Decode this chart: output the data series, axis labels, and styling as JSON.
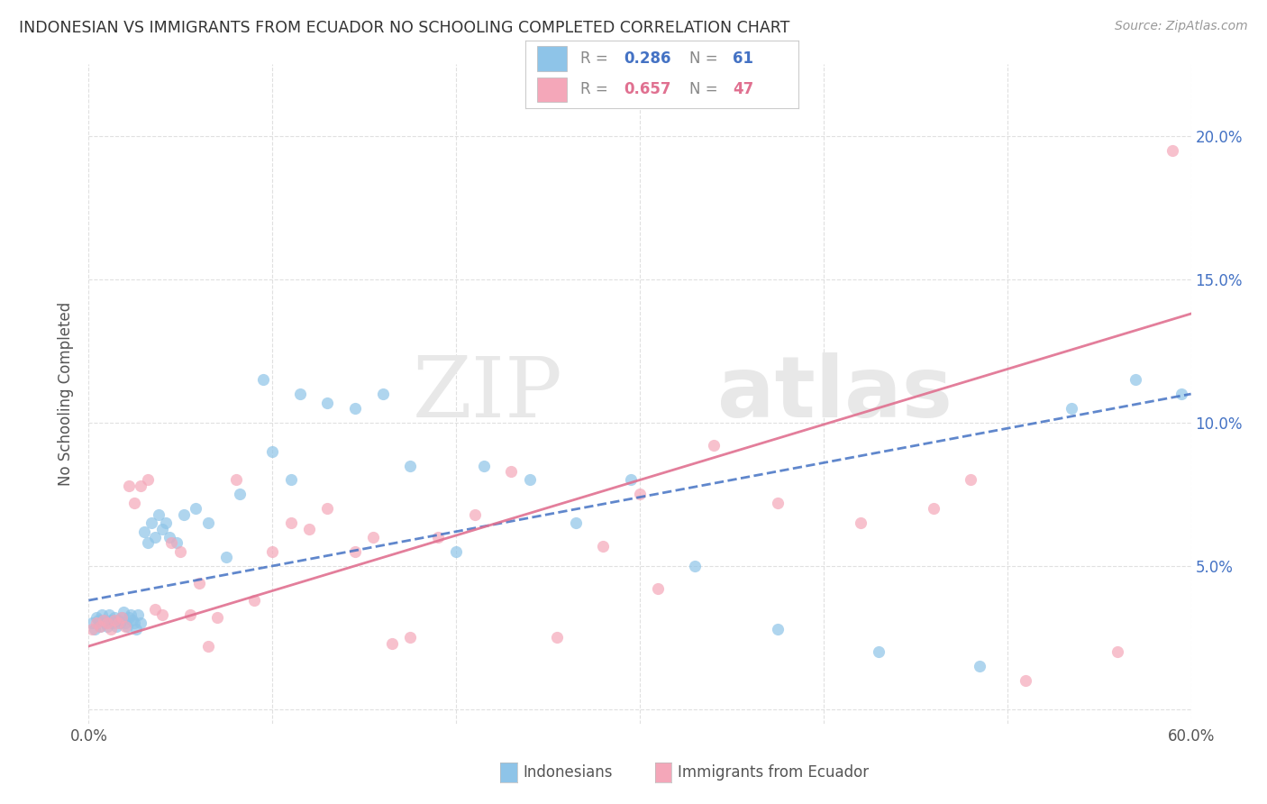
{
  "title": "INDONESIAN VS IMMIGRANTS FROM ECUADOR NO SCHOOLING COMPLETED CORRELATION CHART",
  "source": "Source: ZipAtlas.com",
  "ylabel": "No Schooling Completed",
  "xlim": [
    0.0,
    0.6
  ],
  "ylim": [
    -0.005,
    0.225
  ],
  "color_blue": "#8ec4e8",
  "color_pink": "#f4a7b9",
  "color_line_blue": "#4472c4",
  "color_line_pink": "#e07090",
  "color_tick_right": "#4472c4",
  "blue_x": [
    0.002,
    0.003,
    0.004,
    0.005,
    0.006,
    0.007,
    0.008,
    0.009,
    0.01,
    0.011,
    0.012,
    0.013,
    0.014,
    0.015,
    0.016,
    0.017,
    0.018,
    0.019,
    0.02,
    0.021,
    0.022,
    0.023,
    0.024,
    0.025,
    0.026,
    0.027,
    0.028,
    0.03,
    0.032,
    0.034,
    0.036,
    0.038,
    0.04,
    0.042,
    0.044,
    0.048,
    0.052,
    0.058,
    0.065,
    0.075,
    0.082,
    0.095,
    0.1,
    0.11,
    0.115,
    0.13,
    0.145,
    0.16,
    0.175,
    0.2,
    0.215,
    0.24,
    0.265,
    0.295,
    0.33,
    0.375,
    0.43,
    0.485,
    0.535,
    0.57,
    0.595
  ],
  "blue_y": [
    0.03,
    0.028,
    0.032,
    0.031,
    0.029,
    0.033,
    0.031,
    0.03,
    0.029,
    0.033,
    0.031,
    0.03,
    0.032,
    0.029,
    0.031,
    0.03,
    0.032,
    0.034,
    0.03,
    0.029,
    0.032,
    0.033,
    0.031,
    0.03,
    0.028,
    0.033,
    0.03,
    0.062,
    0.058,
    0.065,
    0.06,
    0.068,
    0.063,
    0.065,
    0.06,
    0.058,
    0.068,
    0.07,
    0.065,
    0.053,
    0.075,
    0.115,
    0.09,
    0.08,
    0.11,
    0.107,
    0.105,
    0.11,
    0.085,
    0.055,
    0.085,
    0.08,
    0.065,
    0.08,
    0.05,
    0.028,
    0.02,
    0.015,
    0.105,
    0.115,
    0.11
  ],
  "pink_x": [
    0.002,
    0.004,
    0.006,
    0.008,
    0.01,
    0.012,
    0.014,
    0.016,
    0.018,
    0.02,
    0.022,
    0.025,
    0.028,
    0.032,
    0.036,
    0.04,
    0.045,
    0.05,
    0.055,
    0.06,
    0.065,
    0.07,
    0.08,
    0.09,
    0.1,
    0.11,
    0.12,
    0.13,
    0.145,
    0.155,
    0.165,
    0.175,
    0.19,
    0.21,
    0.23,
    0.255,
    0.28,
    0.31,
    0.34,
    0.375,
    0.42,
    0.46,
    0.51,
    0.56,
    0.59,
    0.3,
    0.48
  ],
  "pink_y": [
    0.028,
    0.03,
    0.029,
    0.031,
    0.03,
    0.028,
    0.031,
    0.03,
    0.032,
    0.029,
    0.078,
    0.072,
    0.078,
    0.08,
    0.035,
    0.033,
    0.058,
    0.055,
    0.033,
    0.044,
    0.022,
    0.032,
    0.08,
    0.038,
    0.055,
    0.065,
    0.063,
    0.07,
    0.055,
    0.06,
    0.023,
    0.025,
    0.06,
    0.068,
    0.083,
    0.025,
    0.057,
    0.042,
    0.092,
    0.072,
    0.065,
    0.07,
    0.01,
    0.02,
    0.195,
    0.075,
    0.08
  ],
  "blue_line_x": [
    0.0,
    0.6
  ],
  "blue_line_y": [
    0.038,
    0.11
  ],
  "pink_line_x": [
    0.0,
    0.6
  ],
  "pink_line_y": [
    0.022,
    0.138
  ],
  "watermark_zip": "ZIP",
  "watermark_atlas": "atlas",
  "background_color": "#ffffff",
  "grid_color": "#dddddd",
  "legend_r_blue": "0.286",
  "legend_n_blue": "61",
  "legend_r_pink": "0.657",
  "legend_n_pink": "47"
}
